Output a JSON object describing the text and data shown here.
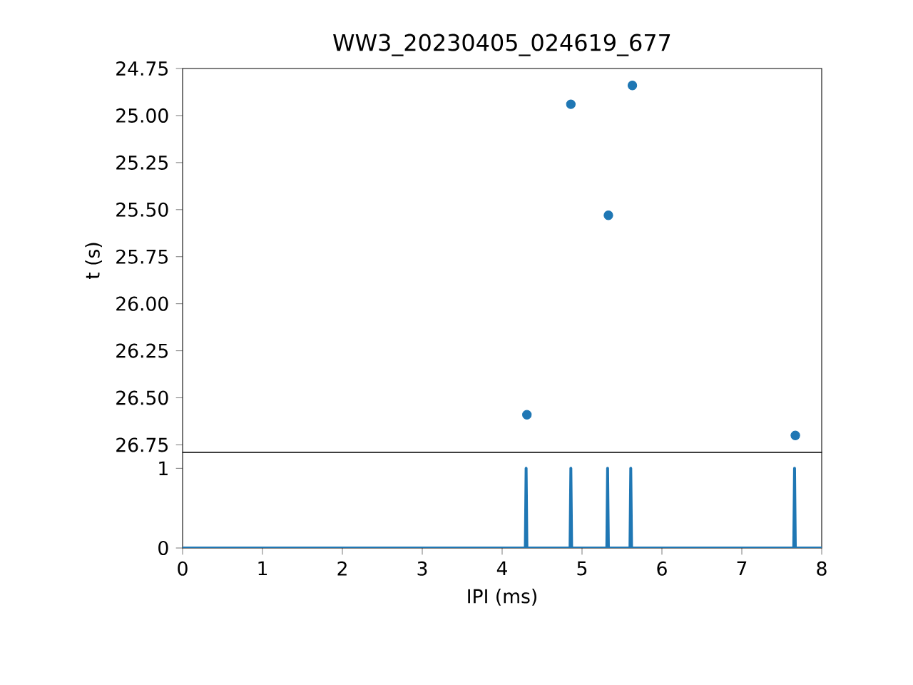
{
  "chart_data": [
    {
      "type": "scatter",
      "title": "WW3_20230405_024619_677",
      "ylabel": "t (s)",
      "color": "#1f77b4",
      "tick_labels": "y",
      "xlim": [
        0,
        8
      ],
      "ylim": [
        26.79,
        24.75
      ],
      "yticks": [
        {
          "value": 24.75,
          "label": "24.75"
        },
        {
          "value": 25.0,
          "label": "25.00"
        },
        {
          "value": 25.25,
          "label": "25.25"
        },
        {
          "value": 25.5,
          "label": "25.50"
        },
        {
          "value": 25.75,
          "label": "25.75"
        },
        {
          "value": 26.0,
          "label": "26.00"
        },
        {
          "value": 26.25,
          "label": "26.25"
        },
        {
          "value": 26.5,
          "label": "26.50"
        },
        {
          "value": 26.75,
          "label": "26.75"
        }
      ],
      "x": [
        5.63,
        4.86,
        5.33,
        4.31,
        7.67
      ],
      "values": [
        24.84,
        24.94,
        25.53,
        26.59,
        26.7
      ]
    },
    {
      "type": "line",
      "xlabel": "IPI (ms)",
      "color": "#1f77b4",
      "xlim": [
        0,
        8
      ],
      "ylim": [
        0,
        1.2
      ],
      "xticks": [
        0,
        1,
        2,
        3,
        4,
        5,
        6,
        7,
        8
      ],
      "yticks": [
        0,
        1
      ],
      "x": [
        0,
        4.29,
        4.3,
        4.31,
        4.85,
        4.86,
        4.87,
        5.31,
        5.32,
        5.33,
        5.6,
        5.61,
        5.62,
        7.65,
        7.66,
        7.67,
        8
      ],
      "values": [
        0,
        0,
        1,
        0,
        0,
        1,
        0,
        0,
        1,
        0,
        0,
        1,
        0,
        0,
        1,
        0,
        0
      ]
    }
  ]
}
